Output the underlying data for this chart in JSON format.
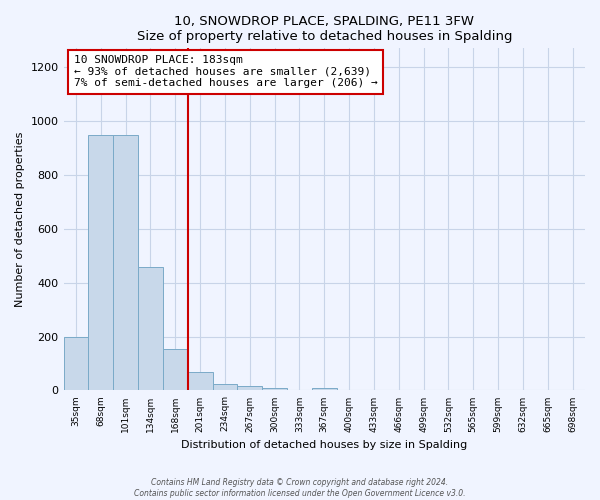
{
  "title": "10, SNOWDROP PLACE, SPALDING, PE11 3FW",
  "subtitle": "Size of property relative to detached houses in Spalding",
  "xlabel": "Distribution of detached houses by size in Spalding",
  "ylabel": "Number of detached properties",
  "bar_labels": [
    "35sqm",
    "68sqm",
    "101sqm",
    "134sqm",
    "168sqm",
    "201sqm",
    "234sqm",
    "267sqm",
    "300sqm",
    "333sqm",
    "367sqm",
    "400sqm",
    "433sqm",
    "466sqm",
    "499sqm",
    "532sqm",
    "565sqm",
    "599sqm",
    "632sqm",
    "665sqm",
    "698sqm"
  ],
  "bar_values": [
    200,
    950,
    950,
    460,
    155,
    70,
    25,
    15,
    10,
    0,
    10,
    0,
    0,
    0,
    0,
    0,
    0,
    0,
    0,
    0,
    0
  ],
  "bar_color": "#c8d8ea",
  "bar_edge_color": "#7aaac8",
  "vline_x": 4.5,
  "vline_color": "#cc0000",
  "annotation_title": "10 SNOWDROP PLACE: 183sqm",
  "annotation_line1": "← 93% of detached houses are smaller (2,639)",
  "annotation_line2": "7% of semi-detached houses are larger (206) →",
  "annotation_box_color": "white",
  "annotation_box_edge": "#cc0000",
  "ylim": [
    0,
    1270
  ],
  "yticks": [
    0,
    200,
    400,
    600,
    800,
    1000,
    1200
  ],
  "footer1": "Contains HM Land Registry data © Crown copyright and database right 2024.",
  "footer2": "Contains public sector information licensed under the Open Government Licence v3.0.",
  "background_color": "#f0f4ff",
  "grid_color": "#c8d4e8"
}
